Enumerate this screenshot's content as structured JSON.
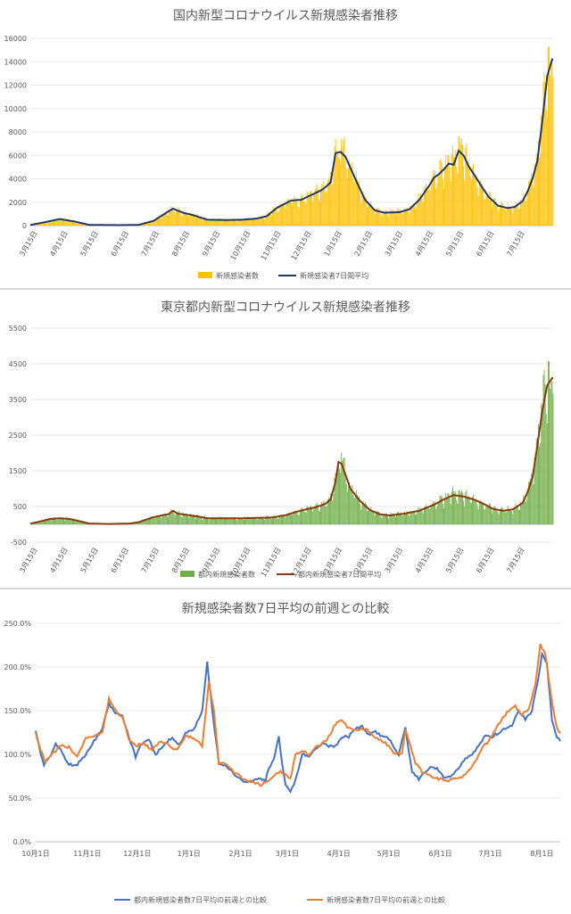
{
  "chart_data": [
    {
      "type": "bar",
      "title": "国内新型コロナウイルス新規感染者推移",
      "y_ticks": [
        "0",
        "2000",
        "4000",
        "6000",
        "8000",
        "10000",
        "12000",
        "14000",
        "16000"
      ],
      "ylim": [
        0,
        16000
      ],
      "x_ticks": [
        "3月15日",
        "4月15日",
        "5月15日",
        "6月15日",
        "7月15日",
        "8月15日",
        "9月15日",
        "10月15日",
        "11月15日",
        "12月15日",
        "1月15日",
        "2月15日",
        "3月15日",
        "4月15日",
        "5月15日",
        "6月15日",
        "7月15日"
      ],
      "series": [
        {
          "name": "新規感染者数",
          "kind": "bar",
          "color": "#FFC000"
        },
        {
          "name": "新規感染者7日間平均",
          "kind": "line",
          "color": "#203864"
        }
      ],
      "anchors": [
        [
          0,
          50
        ],
        [
          15,
          300
        ],
        [
          30,
          560
        ],
        [
          45,
          350
        ],
        [
          60,
          60
        ],
        [
          90,
          40
        ],
        [
          110,
          60
        ],
        [
          125,
          400
        ],
        [
          140,
          1200
        ],
        [
          145,
          1450
        ],
        [
          155,
          1100
        ],
        [
          165,
          900
        ],
        [
          180,
          500
        ],
        [
          200,
          480
        ],
        [
          215,
          500
        ],
        [
          230,
          600
        ],
        [
          240,
          800
        ],
        [
          250,
          1500
        ],
        [
          265,
          2150
        ],
        [
          275,
          2200
        ],
        [
          285,
          2600
        ],
        [
          295,
          3000
        ],
        [
          300,
          3300
        ],
        [
          305,
          3700
        ],
        [
          310,
          6200
        ],
        [
          315,
          6300
        ],
        [
          320,
          5900
        ],
        [
          330,
          4000
        ],
        [
          340,
          2200
        ],
        [
          350,
          1300
        ],
        [
          360,
          1100
        ],
        [
          375,
          1150
        ],
        [
          385,
          1400
        ],
        [
          395,
          2200
        ],
        [
          405,
          3400
        ],
        [
          410,
          4100
        ],
        [
          415,
          4400
        ],
        [
          420,
          4800
        ],
        [
          425,
          5300
        ],
        [
          430,
          5200
        ],
        [
          435,
          6400
        ],
        [
          440,
          6000
        ],
        [
          445,
          5100
        ],
        [
          455,
          3800
        ],
        [
          465,
          2500
        ],
        [
          475,
          1700
        ],
        [
          485,
          1500
        ],
        [
          492,
          1600
        ],
        [
          500,
          2100
        ],
        [
          505,
          2900
        ],
        [
          510,
          4000
        ],
        [
          515,
          5500
        ],
        [
          520,
          9000
        ],
        [
          525,
          12800
        ],
        [
          530,
          14200
        ]
      ],
      "n_days": 532
    },
    {
      "type": "bar",
      "title": "東京都内新型コロナウイルス新規感染者推移",
      "y_ticks": [
        "5500",
        "4500",
        "3500",
        "2500",
        "1500",
        "500",
        "-500"
      ],
      "ylim": [
        -500,
        5500
      ],
      "x_ticks": [
        "3月15日",
        "4月15日",
        "5月15日",
        "6月15日",
        "7月15日",
        "8月15日",
        "9月15日",
        "10月15日",
        "11月15日",
        "12月15日",
        "1月15日",
        "2月15日",
        "3月15日",
        "4月15日",
        "5月15日",
        "6月15日",
        "7月15日"
      ],
      "series": [
        {
          "name": "都内新規感染者数",
          "kind": "bar",
          "color": "#70AD47"
        },
        {
          "name": "都内新規感染者7日間平均",
          "kind": "line",
          "color": "#843C0C"
        }
      ],
      "anchors": [
        [
          0,
          20
        ],
        [
          10,
          80
        ],
        [
          20,
          150
        ],
        [
          30,
          170
        ],
        [
          40,
          150
        ],
        [
          50,
          90
        ],
        [
          60,
          20
        ],
        [
          80,
          10
        ],
        [
          100,
          20
        ],
        [
          110,
          60
        ],
        [
          125,
          200
        ],
        [
          135,
          260
        ],
        [
          140,
          280
        ],
        [
          145,
          380
        ],
        [
          150,
          300
        ],
        [
          160,
          260
        ],
        [
          170,
          220
        ],
        [
          180,
          170
        ],
        [
          200,
          170
        ],
        [
          215,
          170
        ],
        [
          230,
          180
        ],
        [
          245,
          190
        ],
        [
          260,
          260
        ],
        [
          270,
          350
        ],
        [
          280,
          420
        ],
        [
          290,
          480
        ],
        [
          300,
          580
        ],
        [
          305,
          700
        ],
        [
          310,
          1200
        ],
        [
          313,
          1750
        ],
        [
          316,
          1700
        ],
        [
          320,
          1400
        ],
        [
          325,
          1000
        ],
        [
          335,
          650
        ],
        [
          345,
          400
        ],
        [
          355,
          280
        ],
        [
          365,
          250
        ],
        [
          380,
          300
        ],
        [
          395,
          380
        ],
        [
          410,
          550
        ],
        [
          420,
          700
        ],
        [
          430,
          820
        ],
        [
          440,
          780
        ],
        [
          450,
          700
        ],
        [
          460,
          580
        ],
        [
          470,
          430
        ],
        [
          480,
          380
        ],
        [
          490,
          420
        ],
        [
          500,
          600
        ],
        [
          505,
          900
        ],
        [
          510,
          1300
        ],
        [
          515,
          2200
        ],
        [
          520,
          3200
        ],
        [
          525,
          3900
        ],
        [
          530,
          4100
        ]
      ],
      "n_days": 532
    },
    {
      "type": "line",
      "title": "新規感染者数7日平均の前週との比較",
      "y_ticks": [
        "0.0%",
        "50.0%",
        "100.0%",
        "150.0%",
        "200.0%",
        "250.0%"
      ],
      "ylim": [
        0,
        250
      ],
      "x_ticks": [
        "10月1日",
        "11月1日",
        "12月1日",
        "1月1日",
        "2月1日",
        "3月1日",
        "4月1日",
        "5月1日",
        "6月1日",
        "7月1日",
        "8月1日"
      ],
      "series": [
        {
          "name": "都内新規感染者数7日平均の前週との比較",
          "color": "#4472C4",
          "anchors": [
            [
              0,
              128
            ],
            [
              3,
              100
            ],
            [
              5,
              88
            ],
            [
              8,
              95
            ],
            [
              12,
              112
            ],
            [
              15,
              105
            ],
            [
              20,
              88
            ],
            [
              25,
              88
            ],
            [
              30,
              100
            ],
            [
              35,
              115
            ],
            [
              40,
              130
            ],
            [
              44,
              158
            ],
            [
              48,
              148
            ],
            [
              52,
              145
            ],
            [
              56,
              120
            ],
            [
              60,
              97
            ],
            [
              63,
              110
            ],
            [
              68,
              118
            ],
            [
              72,
              100
            ],
            [
              78,
              112
            ],
            [
              82,
              120
            ],
            [
              86,
              110
            ],
            [
              90,
              125
            ],
            [
              95,
              128
            ],
            [
              100,
              150
            ],
            [
              103,
              205
            ],
            [
              106,
              150
            ],
            [
              110,
              90
            ],
            [
              114,
              88
            ],
            [
              118,
              80
            ],
            [
              122,
              72
            ],
            [
              126,
              68
            ],
            [
              130,
              70
            ],
            [
              134,
              72
            ],
            [
              138,
              70
            ],
            [
              140,
              85
            ],
            [
              143,
              93
            ],
            [
              146,
              120
            ],
            [
              148,
              90
            ],
            [
              150,
              65
            ],
            [
              153,
              58
            ],
            [
              156,
              70
            ],
            [
              160,
              100
            ],
            [
              164,
              98
            ],
            [
              168,
              105
            ],
            [
              172,
              112
            ],
            [
              176,
              110
            ],
            [
              180,
              110
            ],
            [
              184,
              120
            ],
            [
              188,
              120
            ],
            [
              192,
              130
            ],
            [
              196,
              132
            ],
            [
              200,
              122
            ],
            [
              204,
              126
            ],
            [
              208,
              120
            ],
            [
              212,
              118
            ],
            [
              216,
              105
            ],
            [
              218,
              98
            ],
            [
              220,
              118
            ],
            [
              222,
              130
            ],
            [
              226,
              80
            ],
            [
              230,
              72
            ],
            [
              234,
              80
            ],
            [
              238,
              86
            ],
            [
              242,
              82
            ],
            [
              246,
              72
            ],
            [
              250,
              75
            ],
            [
              254,
              85
            ],
            [
              258,
              95
            ],
            [
              262,
              100
            ],
            [
              266,
              110
            ],
            [
              270,
              122
            ],
            [
              274,
              120
            ],
            [
              278,
              125
            ],
            [
              282,
              130
            ],
            [
              286,
              133
            ],
            [
              290,
              150
            ],
            [
              294,
              140
            ],
            [
              298,
              150
            ],
            [
              302,
              190
            ],
            [
              304,
              215
            ],
            [
              307,
              205
            ],
            [
              310,
              140
            ],
            [
              313,
              120
            ],
            [
              315,
              115
            ]
          ]
        },
        {
          "name": "新規感染者数7日平均の前週との比較",
          "color": "#ED7D31",
          "anchors": [
            [
              0,
              125
            ],
            [
              3,
              105
            ],
            [
              6,
              92
            ],
            [
              10,
              100
            ],
            [
              15,
              110
            ],
            [
              20,
              108
            ],
            [
              25,
              98
            ],
            [
              30,
              118
            ],
            [
              35,
              120
            ],
            [
              40,
              125
            ],
            [
              44,
              165
            ],
            [
              48,
              150
            ],
            [
              52,
              142
            ],
            [
              56,
              118
            ],
            [
              60,
              110
            ],
            [
              65,
              112
            ],
            [
              70,
              105
            ],
            [
              75,
              115
            ],
            [
              80,
              110
            ],
            [
              85,
              105
            ],
            [
              90,
              122
            ],
            [
              95,
              118
            ],
            [
              100,
              110
            ],
            [
              104,
              182
            ],
            [
              107,
              150
            ],
            [
              110,
              90
            ],
            [
              115,
              88
            ],
            [
              120,
              78
            ],
            [
              125,
              72
            ],
            [
              130,
              68
            ],
            [
              135,
              65
            ],
            [
              140,
              70
            ],
            [
              143,
              75
            ],
            [
              147,
              80
            ],
            [
              150,
              78
            ],
            [
              153,
              72
            ],
            [
              156,
              100
            ],
            [
              160,
              105
            ],
            [
              164,
              100
            ],
            [
              168,
              108
            ],
            [
              172,
              112
            ],
            [
              176,
              120
            ],
            [
              180,
              135
            ],
            [
              183,
              140
            ],
            [
              188,
              130
            ],
            [
              192,
              127
            ],
            [
              196,
              130
            ],
            [
              200,
              127
            ],
            [
              204,
              120
            ],
            [
              208,
              116
            ],
            [
              212,
              110
            ],
            [
              216,
              100
            ],
            [
              220,
              102
            ],
            [
              222,
              127
            ],
            [
              225,
              110
            ],
            [
              228,
              90
            ],
            [
              232,
              80
            ],
            [
              236,
              76
            ],
            [
              240,
              72
            ],
            [
              244,
              72
            ],
            [
              248,
              70
            ],
            [
              252,
              72
            ],
            [
              256,
              75
            ],
            [
              260,
              82
            ],
            [
              264,
              92
            ],
            [
              268,
              108
            ],
            [
              272,
              115
            ],
            [
              276,
              128
            ],
            [
              280,
              140
            ],
            [
              284,
              150
            ],
            [
              288,
              155
            ],
            [
              292,
              145
            ],
            [
              296,
              152
            ],
            [
              300,
              180
            ],
            [
              303,
              225
            ],
            [
              306,
              215
            ],
            [
              310,
              160
            ],
            [
              313,
              130
            ],
            [
              315,
              125
            ]
          ]
        }
      ],
      "n_days": 316
    }
  ]
}
